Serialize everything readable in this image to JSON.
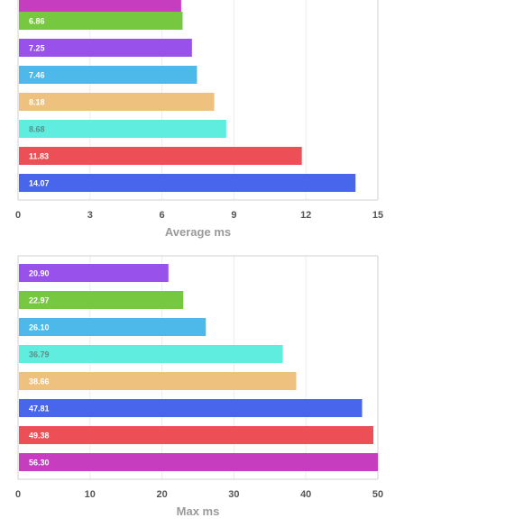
{
  "chart_data": [
    {
      "type": "bar",
      "orientation": "horizontal",
      "xlabel": "Average ms",
      "xlim": [
        0,
        15
      ],
      "xticks": [
        0,
        3,
        6,
        9,
        12,
        15
      ],
      "grid": true,
      "values": [
        6.86,
        7.25,
        7.46,
        8.18,
        8.68,
        11.83,
        14.07
      ],
      "value_labels": [
        "6.86",
        "7.25",
        "7.46",
        "8.18",
        "8.68",
        "11.83",
        "14.07"
      ],
      "colors": [
        "#76c841",
        "#9951ec",
        "#4db8ea",
        "#eec27e",
        "#5eedde",
        "#ec4f55",
        "#4766ec"
      ],
      "label_colors": [
        "#ffffff",
        "#ffffff",
        "#ffffff",
        "#ffffff",
        "#5b8f88",
        "#ffffff",
        "#ffffff"
      ],
      "partial_top_bar": {
        "value": 6.8,
        "color": "#c63dc0"
      }
    },
    {
      "type": "bar",
      "orientation": "horizontal",
      "xlabel": "Max ms",
      "xlim": [
        0,
        50
      ],
      "xticks": [
        0,
        10,
        20,
        30,
        40,
        50
      ],
      "grid": true,
      "values": [
        20.9,
        22.97,
        26.1,
        36.79,
        38.66,
        47.81,
        49.38,
        56.3
      ],
      "value_labels": [
        "20.90",
        "22.97",
        "26.10",
        "36.79",
        "38.66",
        "47.81",
        "49.38",
        "56.30"
      ],
      "colors": [
        "#9951ec",
        "#76c841",
        "#4db8ea",
        "#5eedde",
        "#eec27e",
        "#4766ec",
        "#ec4f55",
        "#c63dc0"
      ],
      "label_colors": [
        "#ffffff",
        "#ffffff",
        "#ffffff",
        "#5b8f88",
        "#ffffff",
        "#ffffff",
        "#ffffff",
        "#ffffff"
      ]
    }
  ]
}
